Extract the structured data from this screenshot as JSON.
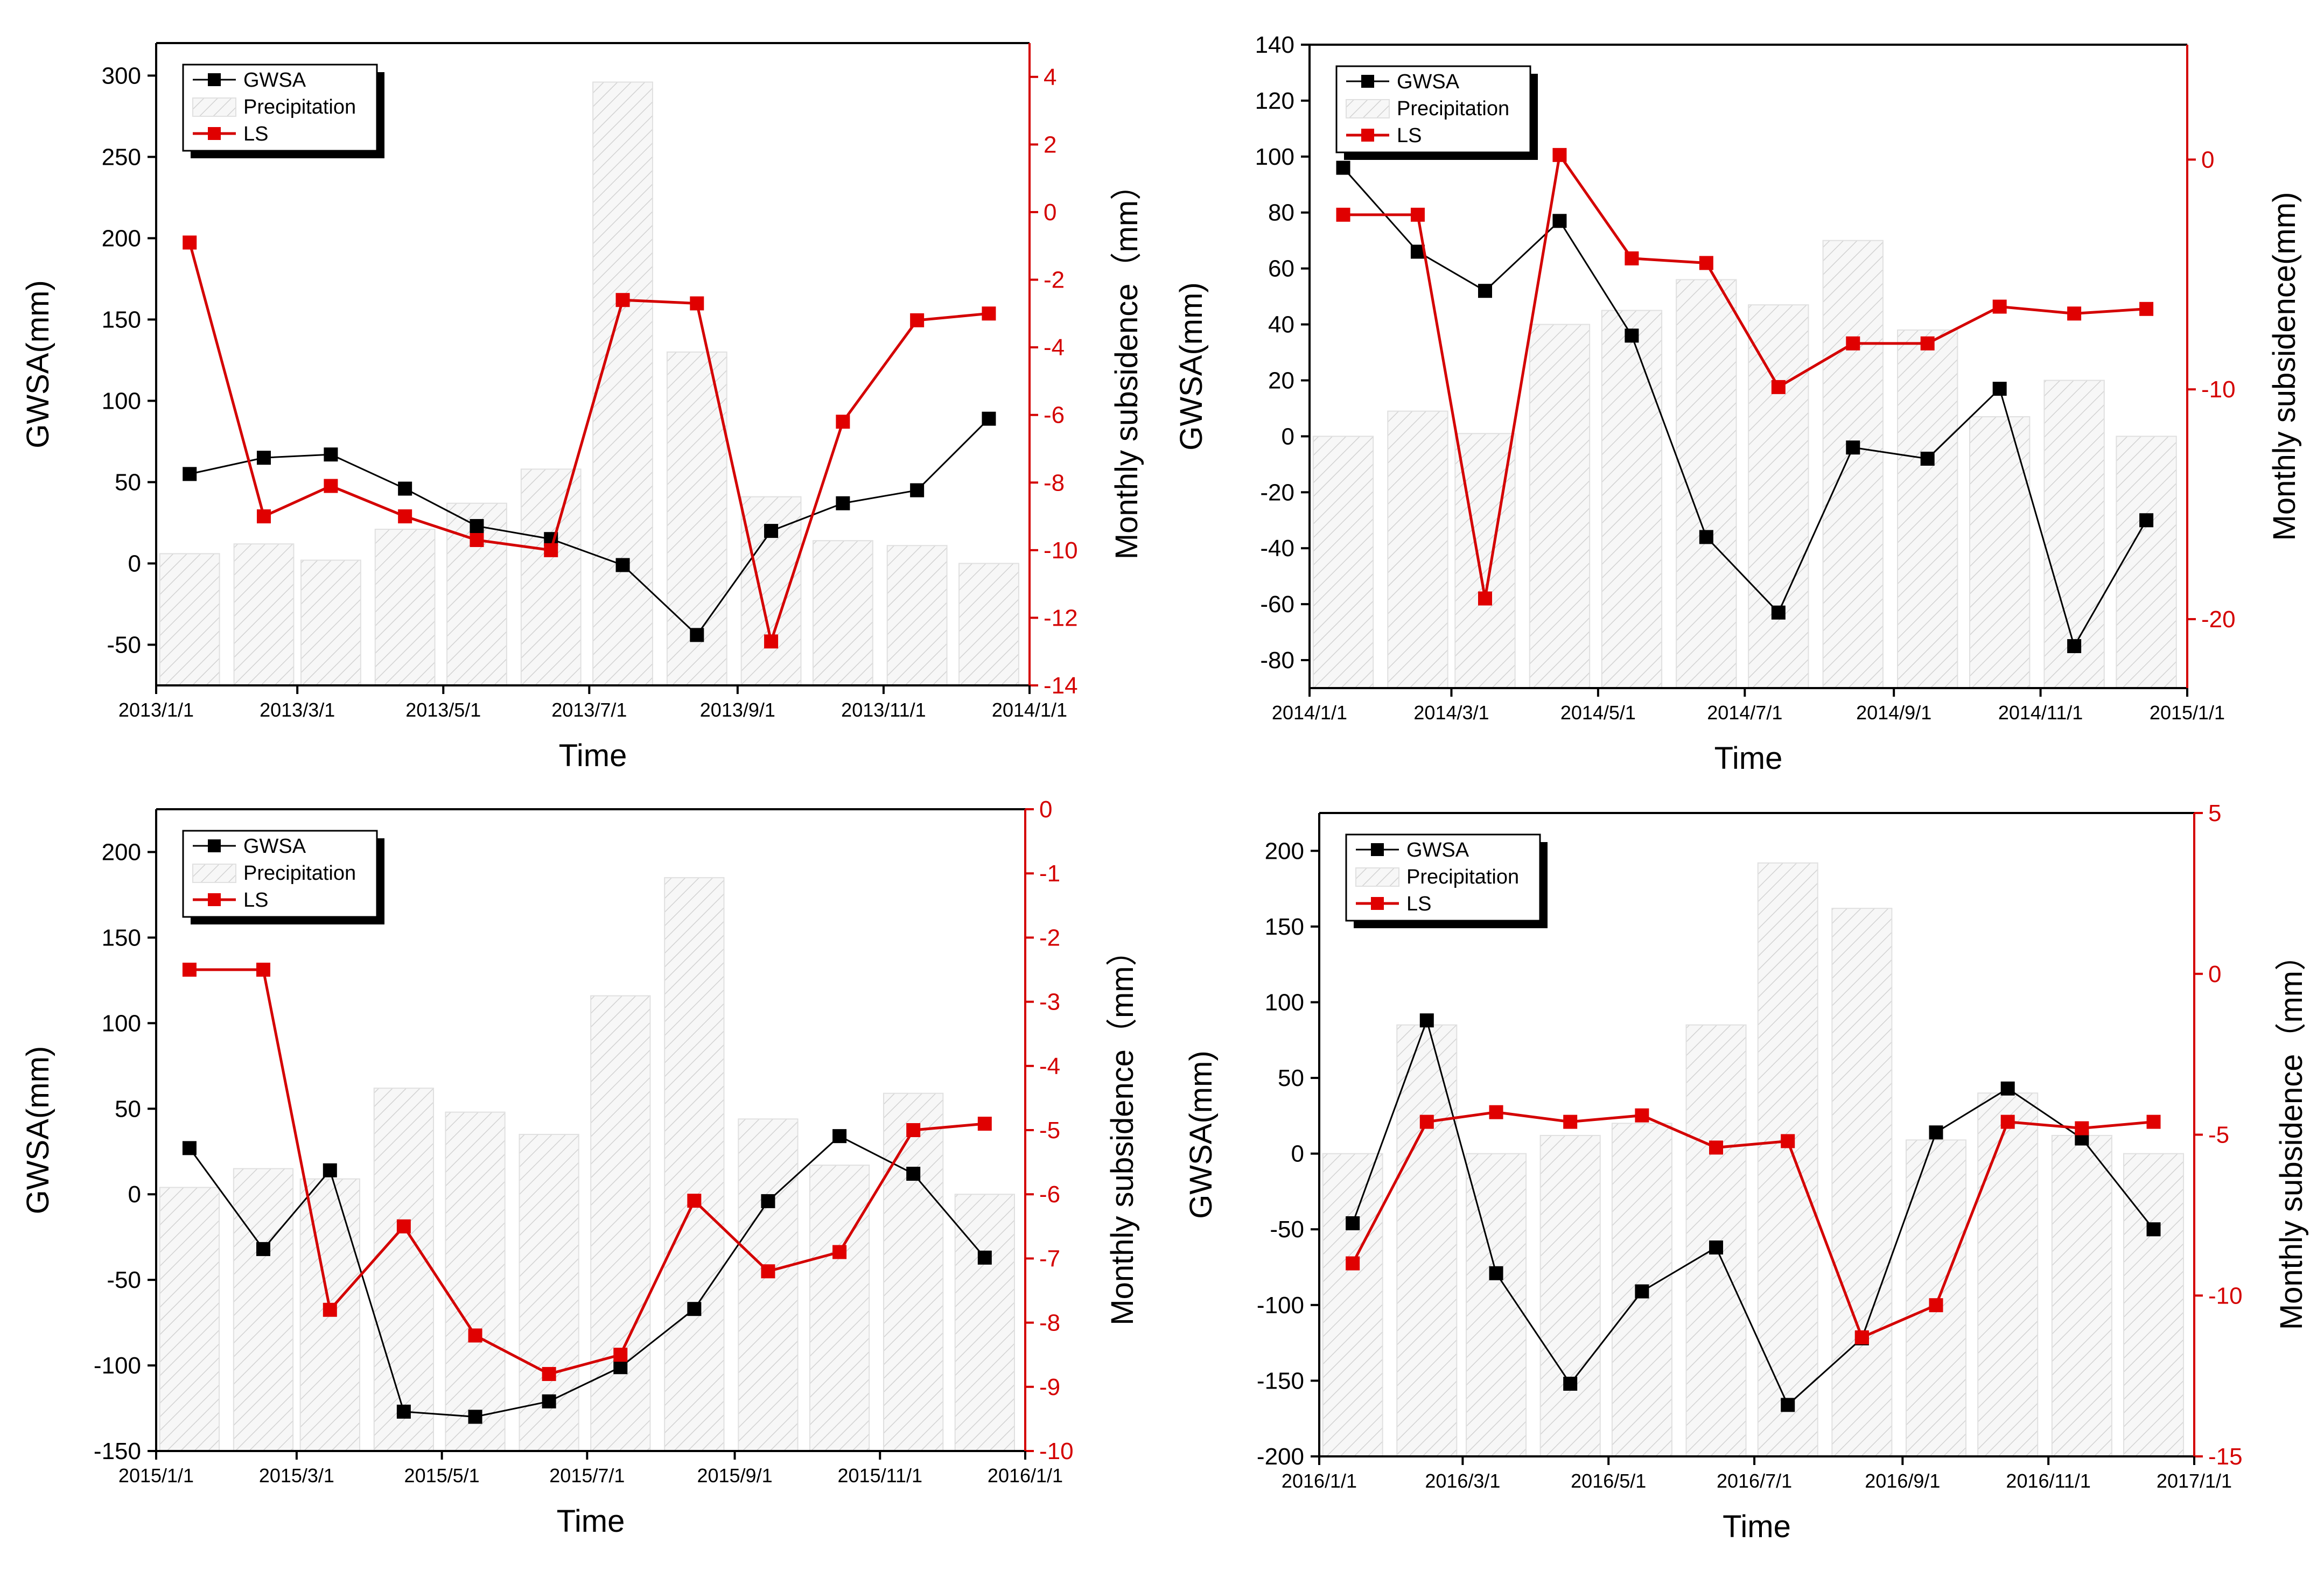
{
  "chart_data": [
    {
      "type": "bar+line",
      "xlabel": "Time",
      "ylabel_left": "GWSA(mm)",
      "ylabel_right": "Monthly subsidence（mm）",
      "legend": [
        "GWSA",
        "Precipitation",
        "LS"
      ],
      "legend_position": "top-left",
      "x_range": [
        "2013/1/1",
        "2014/1/1"
      ],
      "x_ticks": [
        "2013/1/1",
        "2013/3/1",
        "2013/5/1",
        "2013/7/1",
        "2013/9/1",
        "2013/11/1",
        "2014/1/1"
      ],
      "ylim_left": [
        -75,
        320
      ],
      "y_ticks_left": [
        -50,
        0,
        50,
        100,
        150,
        200,
        250,
        300
      ],
      "ylim_right": [
        -14,
        5
      ],
      "y_ticks_right": [
        -14,
        -12,
        -10,
        -8,
        -6,
        -4,
        -2,
        0,
        2,
        4
      ],
      "months": [
        "2013/1",
        "2013/2",
        "2013/3",
        "2013/4",
        "2013/5",
        "2013/6",
        "2013/7",
        "2013/8",
        "2013/9",
        "2013/10",
        "2013/11",
        "2013/12"
      ],
      "series": [
        {
          "name": "Precipitation",
          "values": [
            6,
            12,
            2,
            21,
            37,
            58,
            296,
            130,
            41,
            14,
            11,
            0
          ]
        },
        {
          "name": "GWSA",
          "values": [
            55,
            65,
            67,
            46,
            23,
            15,
            -1,
            -44,
            20,
            37,
            45,
            89
          ]
        },
        {
          "name": "LS",
          "values": [
            -0.9,
            -9.0,
            -8.1,
            -9.0,
            -9.7,
            -10.0,
            -2.6,
            -2.7,
            -12.7,
            -6.2,
            -3.2,
            -3.0
          ]
        }
      ]
    },
    {
      "type": "bar+line",
      "xlabel": "Time",
      "ylabel_left": "GWSA(mm)",
      "ylabel_right": "Monthly subsidence(mm)",
      "legend": [
        "GWSA",
        "Precipitation",
        "LS"
      ],
      "legend_position": "top-left",
      "x_range": [
        "2014/1/1",
        "2015/1/1"
      ],
      "x_ticks": [
        "2014/1/1",
        "2014/3/1",
        "2014/5/1",
        "2014/7/1",
        "2014/9/1",
        "2014/11/1",
        "2015/1/1"
      ],
      "ylim_left": [
        -90,
        140
      ],
      "y_ticks_left": [
        -80,
        -60,
        -40,
        -20,
        0,
        20,
        40,
        60,
        80,
        100,
        120,
        140
      ],
      "ylim_right": [
        -23,
        5
      ],
      "y_ticks_right": [
        -20,
        -10,
        0
      ],
      "months": [
        "2014/1",
        "2014/2",
        "2014/3",
        "2014/4",
        "2014/5",
        "2014/6",
        "2014/7",
        "2014/8",
        "2014/9",
        "2014/10",
        "2014/11",
        "2014/12"
      ],
      "series": [
        {
          "name": "Precipitation",
          "values": [
            0,
            9,
            1,
            40,
            45,
            56,
            47,
            70,
            38,
            7,
            20,
            0
          ]
        },
        {
          "name": "GWSA",
          "values": [
            96,
            66,
            52,
            77,
            36,
            -36,
            -63,
            -4,
            -8,
            17,
            -75,
            -30
          ]
        },
        {
          "name": "LS",
          "values": [
            -2.4,
            -2.4,
            -19.1,
            0.2,
            -4.3,
            -4.5,
            -9.9,
            -8.0,
            -8.0,
            -6.4,
            -6.7,
            -6.5
          ]
        }
      ]
    },
    {
      "type": "bar+line",
      "xlabel": "Time",
      "ylabel_left": "GWSA(mm)",
      "ylabel_right": "Monthly subsidence（mm）",
      "legend": [
        "GWSA",
        "Precipitation",
        "LS"
      ],
      "legend_position": "top-left",
      "x_range": [
        "2015/1/1",
        "2016/1/1"
      ],
      "x_ticks": [
        "2015/1/1",
        "2015/3/1",
        "2015/5/1",
        "2015/7/1",
        "2015/9/1",
        "2015/11/1",
        "2016/1/1"
      ],
      "ylim_left": [
        -150,
        225
      ],
      "y_ticks_left": [
        -150,
        -100,
        -50,
        0,
        50,
        100,
        150,
        200
      ],
      "ylim_right": [
        -10,
        0
      ],
      "y_ticks_right": [
        -10,
        -9,
        -8,
        -7,
        -6,
        -5,
        -4,
        -3,
        -2,
        -1,
        0
      ],
      "months": [
        "2015/1",
        "2015/2",
        "2015/3",
        "2015/4",
        "2015/5",
        "2015/6",
        "2015/7",
        "2015/8",
        "2015/9",
        "2015/10",
        "2015/11",
        "2015/12"
      ],
      "series": [
        {
          "name": "Precipitation",
          "values": [
            4,
            15,
            9,
            62,
            48,
            35,
            116,
            185,
            44,
            17,
            59,
            0
          ]
        },
        {
          "name": "GWSA",
          "values": [
            27,
            -32,
            14,
            -127,
            -130,
            -121,
            -101,
            -67,
            -4,
            34,
            12,
            -37
          ]
        },
        {
          "name": "LS",
          "values": [
            -2.5,
            -2.5,
            -7.8,
            -6.5,
            -8.2,
            -8.8,
            -8.5,
            -6.1,
            -7.2,
            -6.9,
            -5.0,
            -4.9
          ]
        }
      ]
    },
    {
      "type": "bar+line",
      "xlabel": "Time",
      "ylabel_left": "GWSA(mm)",
      "ylabel_right": "Monthly subsidence（mm）",
      "legend": [
        "GWSA",
        "Precipitation",
        "LS"
      ],
      "legend_position": "top-left",
      "x_range": [
        "2016/1/1",
        "2017/1/1"
      ],
      "x_ticks": [
        "2016/1/1",
        "2016/3/1",
        "2016/5/1",
        "2016/7/1",
        "2016/9/1",
        "2016/11/1",
        "2017/1/1"
      ],
      "ylim_left": [
        -200,
        225
      ],
      "y_ticks_left": [
        -200,
        -150,
        -100,
        -50,
        0,
        50,
        100,
        150,
        200
      ],
      "ylim_right": [
        -15,
        5
      ],
      "y_ticks_right": [
        -15,
        -10,
        -5,
        0,
        5
      ],
      "months": [
        "2016/1",
        "2016/2",
        "2016/3",
        "2016/4",
        "2016/5",
        "2016/6",
        "2016/7",
        "2016/8",
        "2016/9",
        "2016/10",
        "2016/11",
        "2016/12"
      ],
      "series": [
        {
          "name": "Precipitation",
          "values": [
            0,
            85,
            0,
            12,
            20,
            85,
            192,
            162,
            9,
            40,
            12,
            0
          ]
        },
        {
          "name": "GWSA",
          "values": [
            -46,
            88,
            -79,
            -152,
            -91,
            -62,
            -166,
            -122,
            14,
            43,
            10,
            -50
          ]
        },
        {
          "name": "LS",
          "values": [
            -9.0,
            -4.6,
            -4.3,
            -4.6,
            -4.4,
            -5.4,
            -5.2,
            -11.3,
            -10.3,
            -4.6,
            -4.8,
            -4.6
          ]
        }
      ]
    }
  ]
}
